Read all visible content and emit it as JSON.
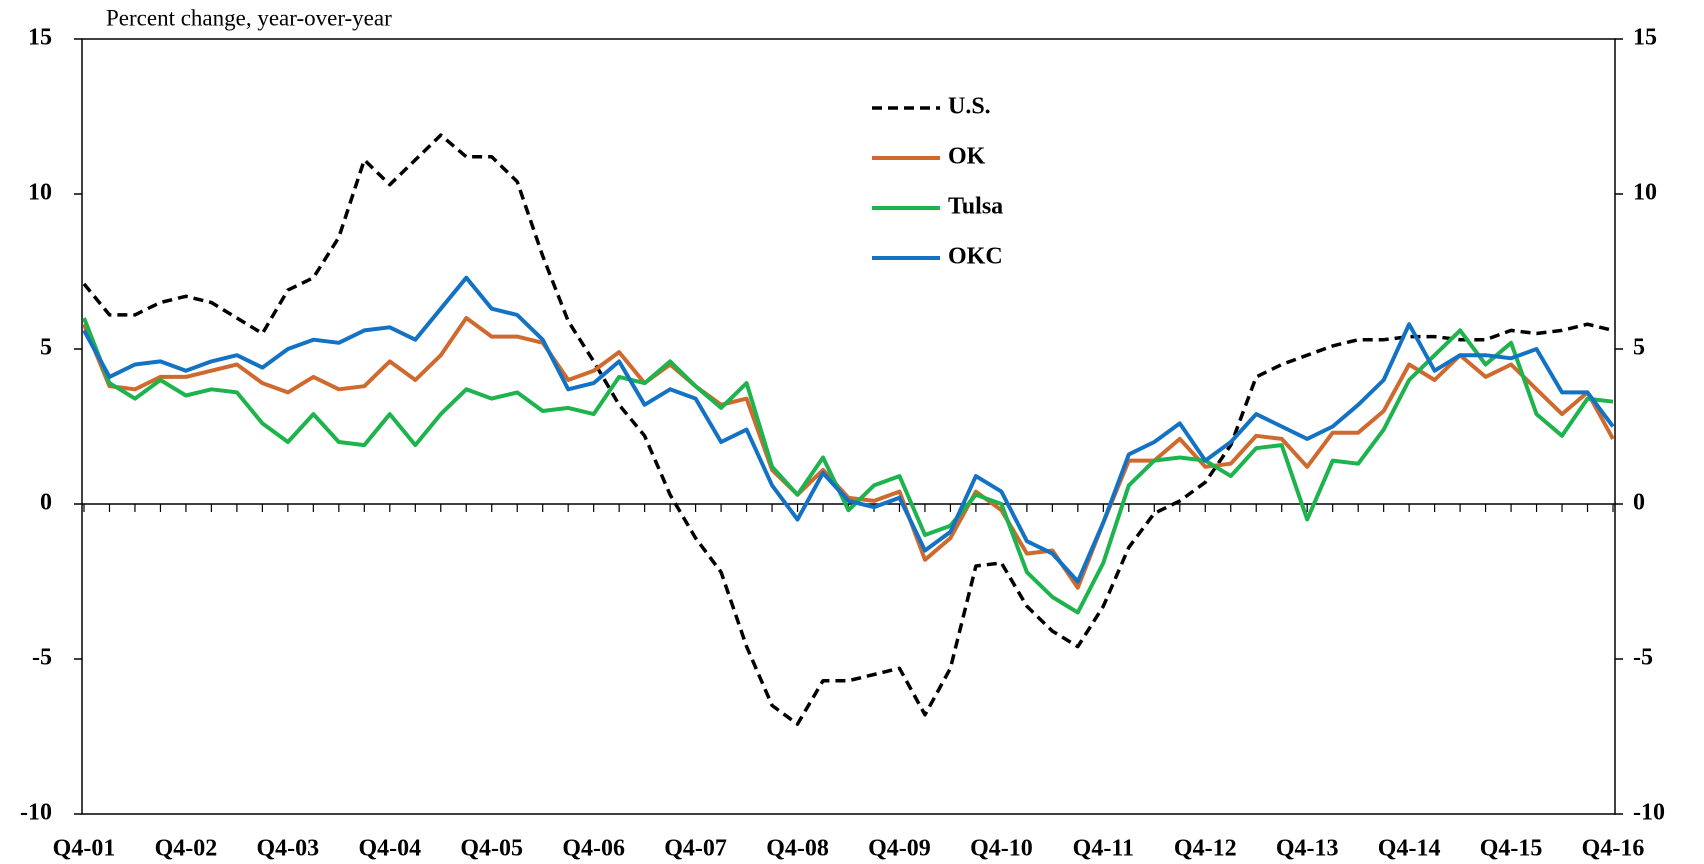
{
  "chart_data": {
    "type": "line",
    "subtitle": "Percent change, year-over-year",
    "categories": [
      "Q4-01",
      null,
      null,
      null,
      "Q4-02",
      null,
      null,
      null,
      "Q4-03",
      null,
      null,
      null,
      "Q4-04",
      null,
      null,
      null,
      "Q4-05",
      null,
      null,
      null,
      "Q4-06",
      null,
      null,
      null,
      "Q4-07",
      null,
      null,
      null,
      "Q4-08",
      null,
      null,
      null,
      "Q4-09",
      null,
      null,
      null,
      "Q4-10",
      null,
      null,
      null,
      "Q4-11",
      null,
      null,
      null,
      "Q4-12",
      null,
      null,
      null,
      "Q4-13",
      null,
      null,
      null,
      "Q4-14",
      null,
      null,
      null,
      "Q4-15",
      null,
      null,
      null,
      "Q4-16"
    ],
    "series": [
      {
        "name": "U.S.",
        "color": "#000000",
        "dashed": true,
        "values": [
          7.1,
          6.1,
          6.1,
          6.5,
          6.7,
          6.5,
          6.0,
          5.5,
          6.9,
          7.3,
          8.6,
          11.1,
          10.3,
          11.1,
          11.9,
          11.2,
          11.2,
          10.4,
          8.0,
          5.9,
          4.6,
          3.2,
          2.2,
          0.3,
          -1.1,
          -2.2,
          -4.6,
          -6.5,
          -7.1,
          -5.7,
          -5.7,
          -5.5,
          -5.3,
          -6.8,
          -5.3,
          -2.0,
          -1.9,
          -3.3,
          -4.1,
          -4.6,
          -3.3,
          -1.4,
          -0.3,
          0.1,
          0.7,
          1.9,
          4.1,
          4.5,
          4.8,
          5.1,
          5.3,
          5.3,
          5.4,
          5.4,
          5.3,
          5.3,
          5.6,
          5.5,
          5.6,
          5.8,
          5.6
        ]
      },
      {
        "name": "OK",
        "color": "#d0692d",
        "dashed": false,
        "values": [
          5.8,
          3.8,
          3.7,
          4.1,
          4.1,
          4.3,
          4.5,
          3.9,
          3.6,
          4.1,
          3.7,
          3.8,
          4.6,
          4.0,
          4.8,
          6.0,
          5.4,
          5.4,
          5.2,
          4.0,
          4.3,
          4.9,
          3.9,
          4.5,
          3.8,
          3.2,
          3.4,
          1.1,
          0.3,
          1.1,
          0.2,
          0.1,
          0.4,
          -1.8,
          -1.1,
          0.4,
          -0.2,
          -1.6,
          -1.5,
          -2.7,
          -0.6,
          1.4,
          1.4,
          2.1,
          1.2,
          1.3,
          2.2,
          2.1,
          1.2,
          2.3,
          2.3,
          3.0,
          4.5,
          4.0,
          4.8,
          4.1,
          4.5,
          3.7,
          2.9,
          3.6,
          2.1
        ]
      },
      {
        "name": "Tulsa",
        "color": "#1db34d",
        "dashed": false,
        "values": [
          6.0,
          3.9,
          3.4,
          4.0,
          3.5,
          3.7,
          3.6,
          2.6,
          2.0,
          2.9,
          2.0,
          1.9,
          2.9,
          1.9,
          2.9,
          3.7,
          3.4,
          3.6,
          3.0,
          3.1,
          2.9,
          4.1,
          3.9,
          4.6,
          3.8,
          3.1,
          3.9,
          1.2,
          0.3,
          1.5,
          -0.2,
          0.6,
          0.9,
          -1.0,
          -0.7,
          0.3,
          0.0,
          -2.2,
          -3.0,
          -3.5,
          -1.9,
          0.6,
          1.4,
          1.5,
          1.4,
          0.9,
          1.8,
          1.9,
          -0.5,
          1.4,
          1.3,
          2.4,
          4.0,
          4.8,
          5.6,
          4.5,
          5.2,
          2.9,
          2.2,
          3.4,
          3.3
        ]
      },
      {
        "name": "OKC",
        "color": "#1472c4",
        "dashed": false,
        "values": [
          5.6,
          4.1,
          4.5,
          4.6,
          4.3,
          4.6,
          4.8,
          4.4,
          5.0,
          5.3,
          5.2,
          5.6,
          5.7,
          5.3,
          6.3,
          7.3,
          6.3,
          6.1,
          5.3,
          3.7,
          3.9,
          4.6,
          3.2,
          3.7,
          3.4,
          2.0,
          2.4,
          0.6,
          -0.5,
          1.0,
          0.1,
          -0.1,
          0.2,
          -1.5,
          -0.9,
          0.9,
          0.4,
          -1.2,
          -1.6,
          -2.5,
          -0.6,
          1.6,
          2.0,
          2.6,
          1.4,
          2.0,
          2.9,
          2.5,
          2.1,
          2.5,
          3.2,
          4.0,
          5.8,
          4.3,
          4.8,
          4.8,
          4.7,
          5.0,
          3.6,
          3.6,
          2.5
        ]
      }
    ],
    "ylim": [
      -10,
      15
    ],
    "yticks": [
      -10,
      -5,
      0,
      5,
      10,
      15
    ],
    "y2lim": [
      -10,
      15
    ],
    "y2ticks": [
      -10,
      -5,
      0,
      5,
      10,
      15
    ],
    "grid": false
  }
}
